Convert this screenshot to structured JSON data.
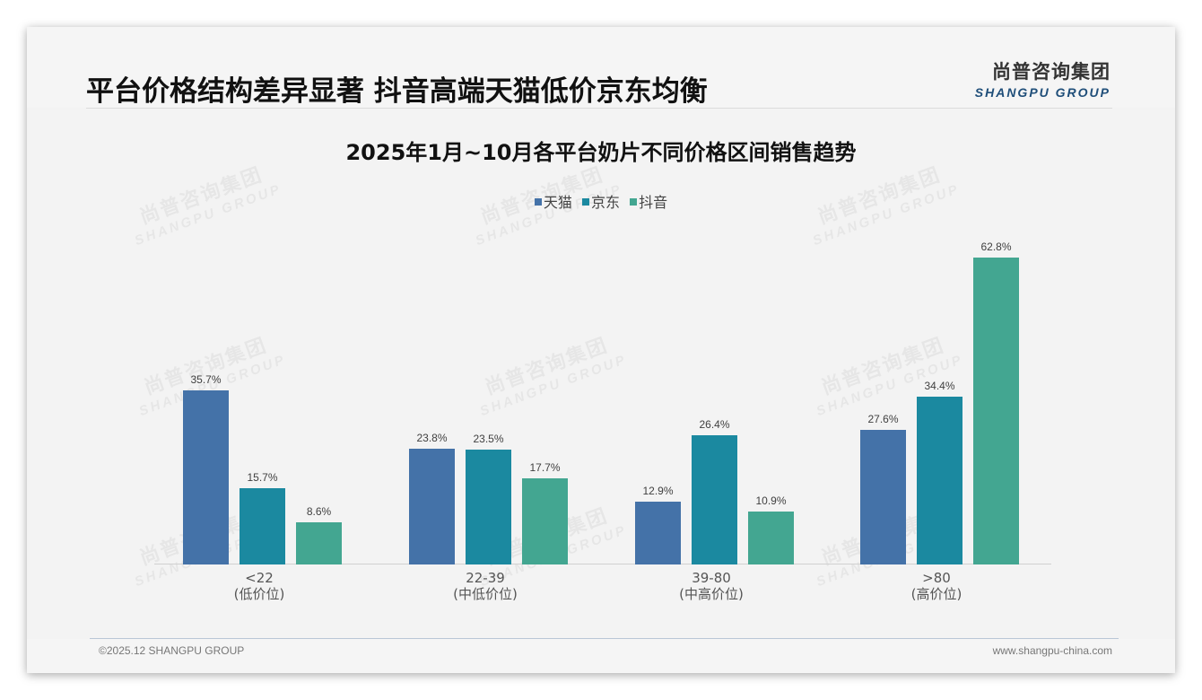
{
  "header": {
    "title": "平台价格结构差异显著 抖音高端天猫低价京东均衡",
    "logo_cn": "尚普咨询集团",
    "logo_en": "SHANGPU GROUP"
  },
  "watermark": {
    "cn": "尚普咨询集团",
    "en": "SHANGPU GROUP"
  },
  "footer": {
    "copyright": "©2025.12 SHANGPU GROUP",
    "website": "www.shangpu-china.com"
  },
  "colors": {
    "tmall": "#4472a8",
    "jd": "#1b89a0",
    "douyin": "#43a691"
  },
  "chart_data": {
    "type": "bar",
    "title": "2025年1月~10月各平台奶片不同价格区间销售趋势",
    "categories": [
      "<22",
      "22-39",
      "39-80",
      ">80"
    ],
    "category_sublabels": [
      "(低价位)",
      "(中低价位)",
      "(中高价位)",
      "(高价位)"
    ],
    "series": [
      {
        "name": "天猫",
        "color": "#4472a8",
        "values": [
          35.7,
          23.8,
          12.9,
          27.6
        ],
        "labels": [
          "35.7%",
          "23.8%",
          "12.9%",
          "27.6%"
        ]
      },
      {
        "name": "京东",
        "color": "#1b89a0",
        "values": [
          15.7,
          23.5,
          26.4,
          34.4
        ],
        "labels": [
          "15.7%",
          "23.5%",
          "26.4%",
          "34.4%"
        ]
      },
      {
        "name": "抖音",
        "color": "#43a691",
        "values": [
          8.6,
          17.7,
          10.9,
          62.8
        ],
        "labels": [
          "8.6%",
          "17.7%",
          "10.9%",
          "62.8%"
        ]
      }
    ],
    "unit": "%",
    "xlabel": "",
    "ylabel": "",
    "ylim": [
      0,
      66
    ],
    "grid": false,
    "legend_position": "top"
  }
}
